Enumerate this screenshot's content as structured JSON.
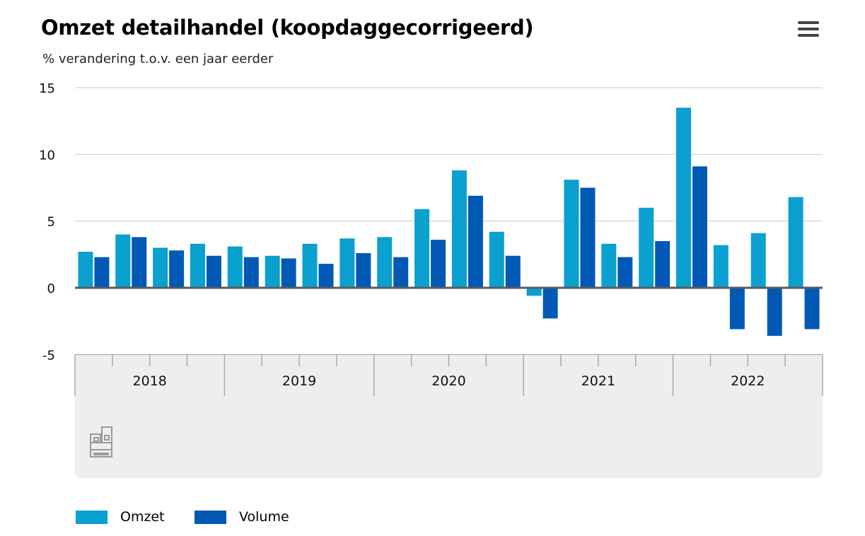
{
  "header": {
    "title": "Omzet detailhandel (koopdaggecorrigeerd)",
    "subtitle": "% verandering t.o.v. een jaar eerder",
    "menu_icon": "hamburger-menu-icon"
  },
  "colors": {
    "omzet": "#0aa0cf",
    "volume": "#0259b5",
    "grid": "#cccccc",
    "zero": "#5a5a5a",
    "panel": "#eeeeee"
  },
  "logo": "cbs",
  "chart_data": {
    "type": "bar",
    "title": "Omzet detailhandel (koopdaggecorrigeerd)",
    "subtitle": "% verandering t.o.v. een jaar eerder",
    "categories": [
      "2018 Q1",
      "2018 Q2",
      "2018 Q3",
      "2018 Q4",
      "2019 Q1",
      "2019 Q2",
      "2019 Q3",
      "2019 Q4",
      "2020 Q1",
      "2020 Q2",
      "2020 Q3",
      "2020 Q4",
      "2021 Q1",
      "2021 Q2",
      "2021 Q3",
      "2021 Q4",
      "2022 Q1",
      "2022 Q2",
      "2022 Q3",
      "2022 Q4"
    ],
    "groups": [
      "2018",
      "2019",
      "2020",
      "2021",
      "2022"
    ],
    "series": [
      {
        "name": "Omzet",
        "values": [
          2.7,
          4.0,
          3.0,
          3.3,
          3.1,
          2.4,
          3.3,
          3.7,
          3.8,
          5.9,
          8.8,
          4.2,
          -0.6,
          8.1,
          3.3,
          6.0,
          13.5,
          3.2,
          4.1,
          6.8
        ]
      },
      {
        "name": "Volume",
        "values": [
          2.3,
          3.8,
          2.8,
          2.4,
          2.3,
          2.2,
          1.8,
          2.6,
          2.3,
          3.6,
          6.9,
          2.4,
          -2.3,
          7.5,
          2.3,
          3.5,
          9.1,
          -3.1,
          -3.6,
          -3.1
        ]
      }
    ],
    "ylim": [
      -5,
      15
    ],
    "yticks": [
      15,
      10,
      5,
      0,
      -5
    ],
    "xlabel": "",
    "ylabel": "",
    "grid": true,
    "legend_position": "bottom-left"
  }
}
